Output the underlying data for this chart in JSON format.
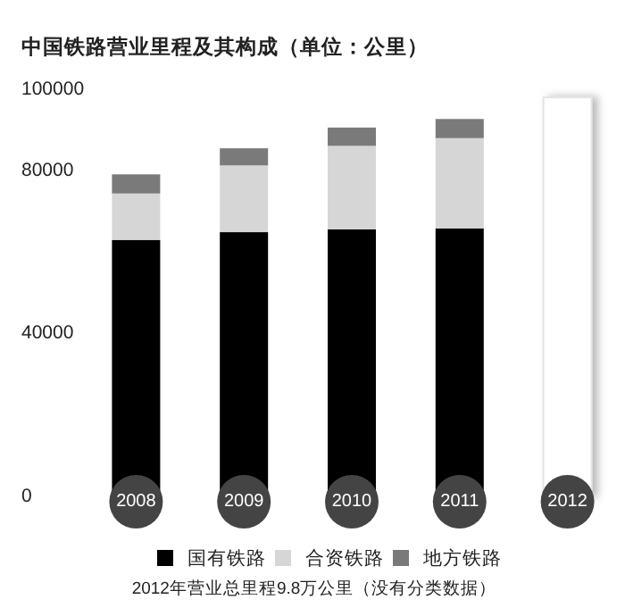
{
  "chart_data": {
    "type": "bar",
    "title": "中国铁路营业里程及其构成（单位：公里）",
    "categories": [
      "2008",
      "2009",
      "2010",
      "2011",
      "2012"
    ],
    "stacked": true,
    "legend": "bottom",
    "grid": false,
    "ylim": [
      0,
      100000
    ],
    "yticks": [
      0,
      40000,
      80000,
      100000
    ],
    "series": [
      {
        "name": "国有铁路",
        "color": "#000000",
        "values": [
          63000,
          64900,
          65600,
          65800,
          null
        ]
      },
      {
        "name": "合资铁路",
        "color": "#d6d6d6",
        "values": [
          11400,
          16400,
          20500,
          22200,
          null
        ]
      },
      {
        "name": "地方铁路",
        "color": "#7a7a7a",
        "values": [
          4700,
          4200,
          4500,
          4700,
          null
        ]
      },
      {
        "color": "#ffffff",
        "values": [
          null,
          null,
          null,
          null,
          98000
        ]
      }
    ],
    "annotations": [
      "2012年营业总里程9.8万公里（没有分类数据）"
    ]
  }
}
